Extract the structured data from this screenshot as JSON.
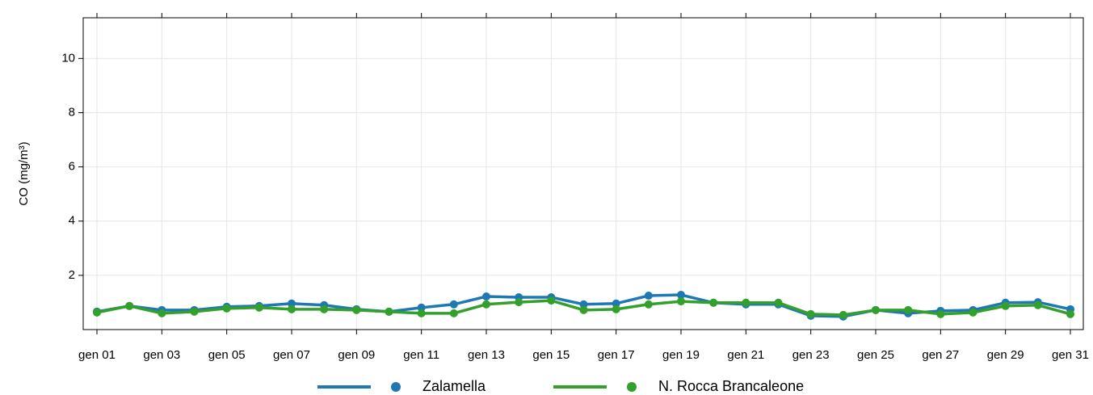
{
  "chart_data": {
    "type": "line",
    "y_label": "CO (mg/m³)",
    "categories": [
      "gen 01",
      null,
      "gen 03",
      null,
      "gen 05",
      null,
      "gen 07",
      null,
      "gen 09",
      null,
      "gen 11",
      null,
      "gen 13",
      null,
      "gen 15",
      null,
      "gen 17",
      null,
      "gen 19",
      null,
      "gen 21",
      null,
      "gen 23",
      null,
      "gen 25",
      null,
      "gen 27",
      null,
      "gen 29",
      null,
      "gen 31"
    ],
    "series": [
      {
        "name": "Zalamella",
        "color": "#1f78b4",
        "values": [
          0.66,
          0.87,
          0.72,
          0.72,
          0.84,
          0.87,
          0.96,
          0.9,
          0.75,
          0.66,
          0.81,
          0.93,
          1.22,
          1.19,
          1.19,
          0.93,
          0.96,
          1.25,
          1.28,
          0.99,
          0.93,
          0.93,
          0.51,
          0.48,
          0.72,
          0.6,
          0.69,
          0.72,
          0.99,
          1.01,
          0.75
        ]
      },
      {
        "name": "N. Rocca Brancaleone",
        "color": "#33a02c",
        "values": [
          0.63,
          0.87,
          0.6,
          0.66,
          0.78,
          0.81,
          0.75,
          0.75,
          0.72,
          0.66,
          0.6,
          0.6,
          0.93,
          1.01,
          1.07,
          0.72,
          0.75,
          0.93,
          1.04,
          0.99,
          0.99,
          0.99,
          0.57,
          0.54,
          0.72,
          0.72,
          0.57,
          0.63,
          0.87,
          0.9,
          0.57
        ]
      }
    ],
    "ylim": [
      0,
      11.5
    ],
    "yticks": [
      2,
      4,
      6,
      8,
      10
    ],
    "grid": true,
    "legend": "bottom"
  }
}
